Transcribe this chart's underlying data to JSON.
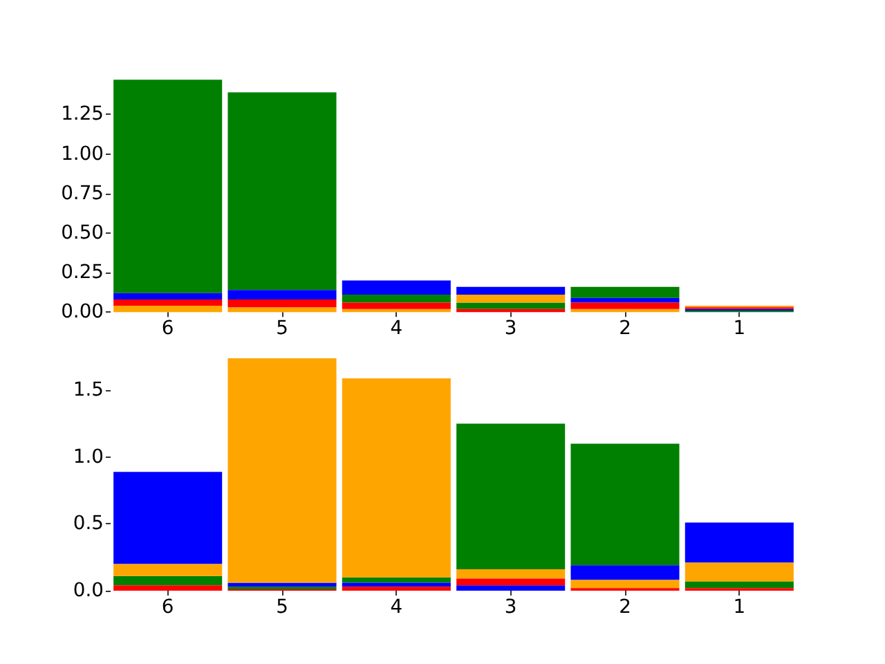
{
  "chart_data": [
    {
      "type": "bar",
      "categories": [
        "6",
        "5",
        "4",
        "3",
        "2",
        "1"
      ],
      "series": [
        {
          "color": "#008000",
          "values": [
            1.35,
            1.25,
            0.05,
            0.04,
            0.07,
            0.01
          ],
          "base": [
            0.12,
            0.14,
            0.06,
            0.02,
            0.09,
            0
          ]
        },
        {
          "color": "#0000ff",
          "values": [
            0.04,
            0.06,
            0.09,
            0.05,
            0.03,
            0.01
          ],
          "base": [
            0.08,
            0.08,
            0.11,
            0.11,
            0.06,
            0.01
          ]
        },
        {
          "color": "#ffa500",
          "values": [
            0.04,
            0.03,
            0.02,
            0.05,
            0.02,
            0.01
          ],
          "base": [
            0,
            0,
            0,
            0.06,
            0,
            0.03
          ]
        },
        {
          "color": "#ff0000",
          "values": [
            0.04,
            0.05,
            0.04,
            0.02,
            0.04,
            0.01
          ],
          "base": [
            0.04,
            0.03,
            0.02,
            0,
            0.02,
            0.02
          ]
        }
      ],
      "ylim": [
        0,
        1.47
      ],
      "yticks": [
        {
          "value": 0,
          "label": "0.00"
        },
        0.25,
        {
          "value": 0.5,
          "label": "0.50"
        },
        0.75,
        {
          "value": 1,
          "label": "1.00"
        },
        1.25
      ]
    },
    {
      "type": "bar",
      "categories": [
        "6",
        "5",
        "4",
        "3",
        "2",
        "1"
      ],
      "series": [
        {
          "color": "#008000",
          "values": [
            0.07,
            0.02,
            0.04,
            1.09,
            0.91,
            0.05
          ],
          "base": [
            0.04,
            0.01,
            0.06,
            0.16,
            0.19,
            0.02
          ]
        },
        {
          "color": "#0000ff",
          "values": [
            0.69,
            0.03,
            0.03,
            0.04,
            0.11,
            0.3
          ],
          "base": [
            0.2,
            0.03,
            0.03,
            0,
            0.08,
            0.21
          ]
        },
        {
          "color": "#ffa500",
          "values": [
            0.09,
            1.68,
            1.49,
            0.07,
            0.06,
            0.14
          ],
          "base": [
            0.11,
            0.06,
            0.1,
            0.09,
            0.02,
            0.07
          ]
        },
        {
          "color": "#ff0000",
          "values": [
            0.04,
            0.01,
            0.03,
            0.05,
            0.02,
            0.02
          ],
          "base": [
            0,
            0,
            0,
            0.04,
            0,
            0
          ]
        }
      ],
      "ylim": [
        0,
        1.74
      ],
      "yticks": [
        {
          "value": 0,
          "label": "0.0"
        },
        0.5,
        {
          "value": 1,
          "label": "1.0"
        },
        1.5
      ]
    }
  ]
}
